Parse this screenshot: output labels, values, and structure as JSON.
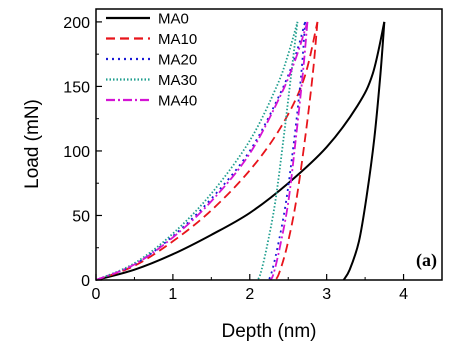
{
  "chart_data": {
    "type": "line",
    "title": "",
    "xlabel": "Depth (nm)",
    "ylabel": "Load (mN)",
    "xlim": [
      0,
      4.5
    ],
    "ylim": [
      0,
      210
    ],
    "xticks": [
      0,
      1,
      2,
      3,
      4
    ],
    "yticks": [
      0,
      50,
      100,
      150,
      200
    ],
    "grid": false,
    "legend": "top-left",
    "annotation": "(a)",
    "series": [
      {
        "name": "MA0",
        "color": "#000000",
        "dash": "solid",
        "loading": [
          [
            0,
            0
          ],
          [
            0.5,
            8
          ],
          [
            1,
            20
          ],
          [
            1.5,
            35
          ],
          [
            2,
            52
          ],
          [
            2.5,
            75
          ],
          [
            3,
            103
          ],
          [
            3.4,
            135
          ],
          [
            3.6,
            160
          ],
          [
            3.75,
            200
          ]
        ],
        "unloading": [
          [
            3.75,
            200
          ],
          [
            3.7,
            160
          ],
          [
            3.62,
            110
          ],
          [
            3.52,
            65
          ],
          [
            3.42,
            30
          ],
          [
            3.3,
            8
          ],
          [
            3.22,
            0
          ]
        ]
      },
      {
        "name": "MA10",
        "color": "#e8141b",
        "dash": "dashed",
        "loading": [
          [
            0,
            0
          ],
          [
            0.5,
            11
          ],
          [
            1,
            30
          ],
          [
            1.5,
            54
          ],
          [
            2,
            85
          ],
          [
            2.4,
            118
          ],
          [
            2.7,
            155
          ],
          [
            2.88,
            200
          ]
        ],
        "unloading": [
          [
            2.88,
            200
          ],
          [
            2.82,
            160
          ],
          [
            2.72,
            110
          ],
          [
            2.6,
            60
          ],
          [
            2.48,
            25
          ],
          [
            2.38,
            5
          ],
          [
            2.33,
            0
          ]
        ]
      },
      {
        "name": "MA20",
        "color": "#1a1ad6",
        "dash": "dotted",
        "loading": [
          [
            0,
            0
          ],
          [
            0.5,
            12
          ],
          [
            1,
            34
          ],
          [
            1.5,
            63
          ],
          [
            2,
            100
          ],
          [
            2.4,
            145
          ],
          [
            2.6,
            175
          ],
          [
            2.72,
            200
          ]
        ],
        "unloading": [
          [
            2.72,
            200
          ],
          [
            2.67,
            160
          ],
          [
            2.58,
            110
          ],
          [
            2.47,
            60
          ],
          [
            2.36,
            25
          ],
          [
            2.28,
            5
          ],
          [
            2.24,
            0
          ]
        ]
      },
      {
        "name": "MA30",
        "color": "#1f9e8e",
        "dash": "dense-dotted",
        "loading": [
          [
            0,
            0
          ],
          [
            0.5,
            13
          ],
          [
            1,
            36
          ],
          [
            1.5,
            67
          ],
          [
            2,
            108
          ],
          [
            2.35,
            150
          ],
          [
            2.5,
            175
          ],
          [
            2.62,
            200
          ]
        ],
        "unloading": [
          [
            2.62,
            200
          ],
          [
            2.54,
            160
          ],
          [
            2.44,
            110
          ],
          [
            2.33,
            60
          ],
          [
            2.22,
            25
          ],
          [
            2.14,
            5
          ],
          [
            2.1,
            0
          ]
        ]
      },
      {
        "name": "MA40",
        "color": "#d414d4",
        "dash": "dash-dot",
        "loading": [
          [
            0,
            0
          ],
          [
            0.5,
            12
          ],
          [
            1,
            33
          ],
          [
            1.5,
            61
          ],
          [
            2,
            98
          ],
          [
            2.4,
            143
          ],
          [
            2.6,
            172
          ],
          [
            2.75,
            200
          ]
        ],
        "unloading": [
          [
            2.75,
            200
          ],
          [
            2.69,
            160
          ],
          [
            2.6,
            110
          ],
          [
            2.5,
            60
          ],
          [
            2.39,
            25
          ],
          [
            2.31,
            5
          ],
          [
            2.27,
            0
          ]
        ]
      }
    ]
  }
}
